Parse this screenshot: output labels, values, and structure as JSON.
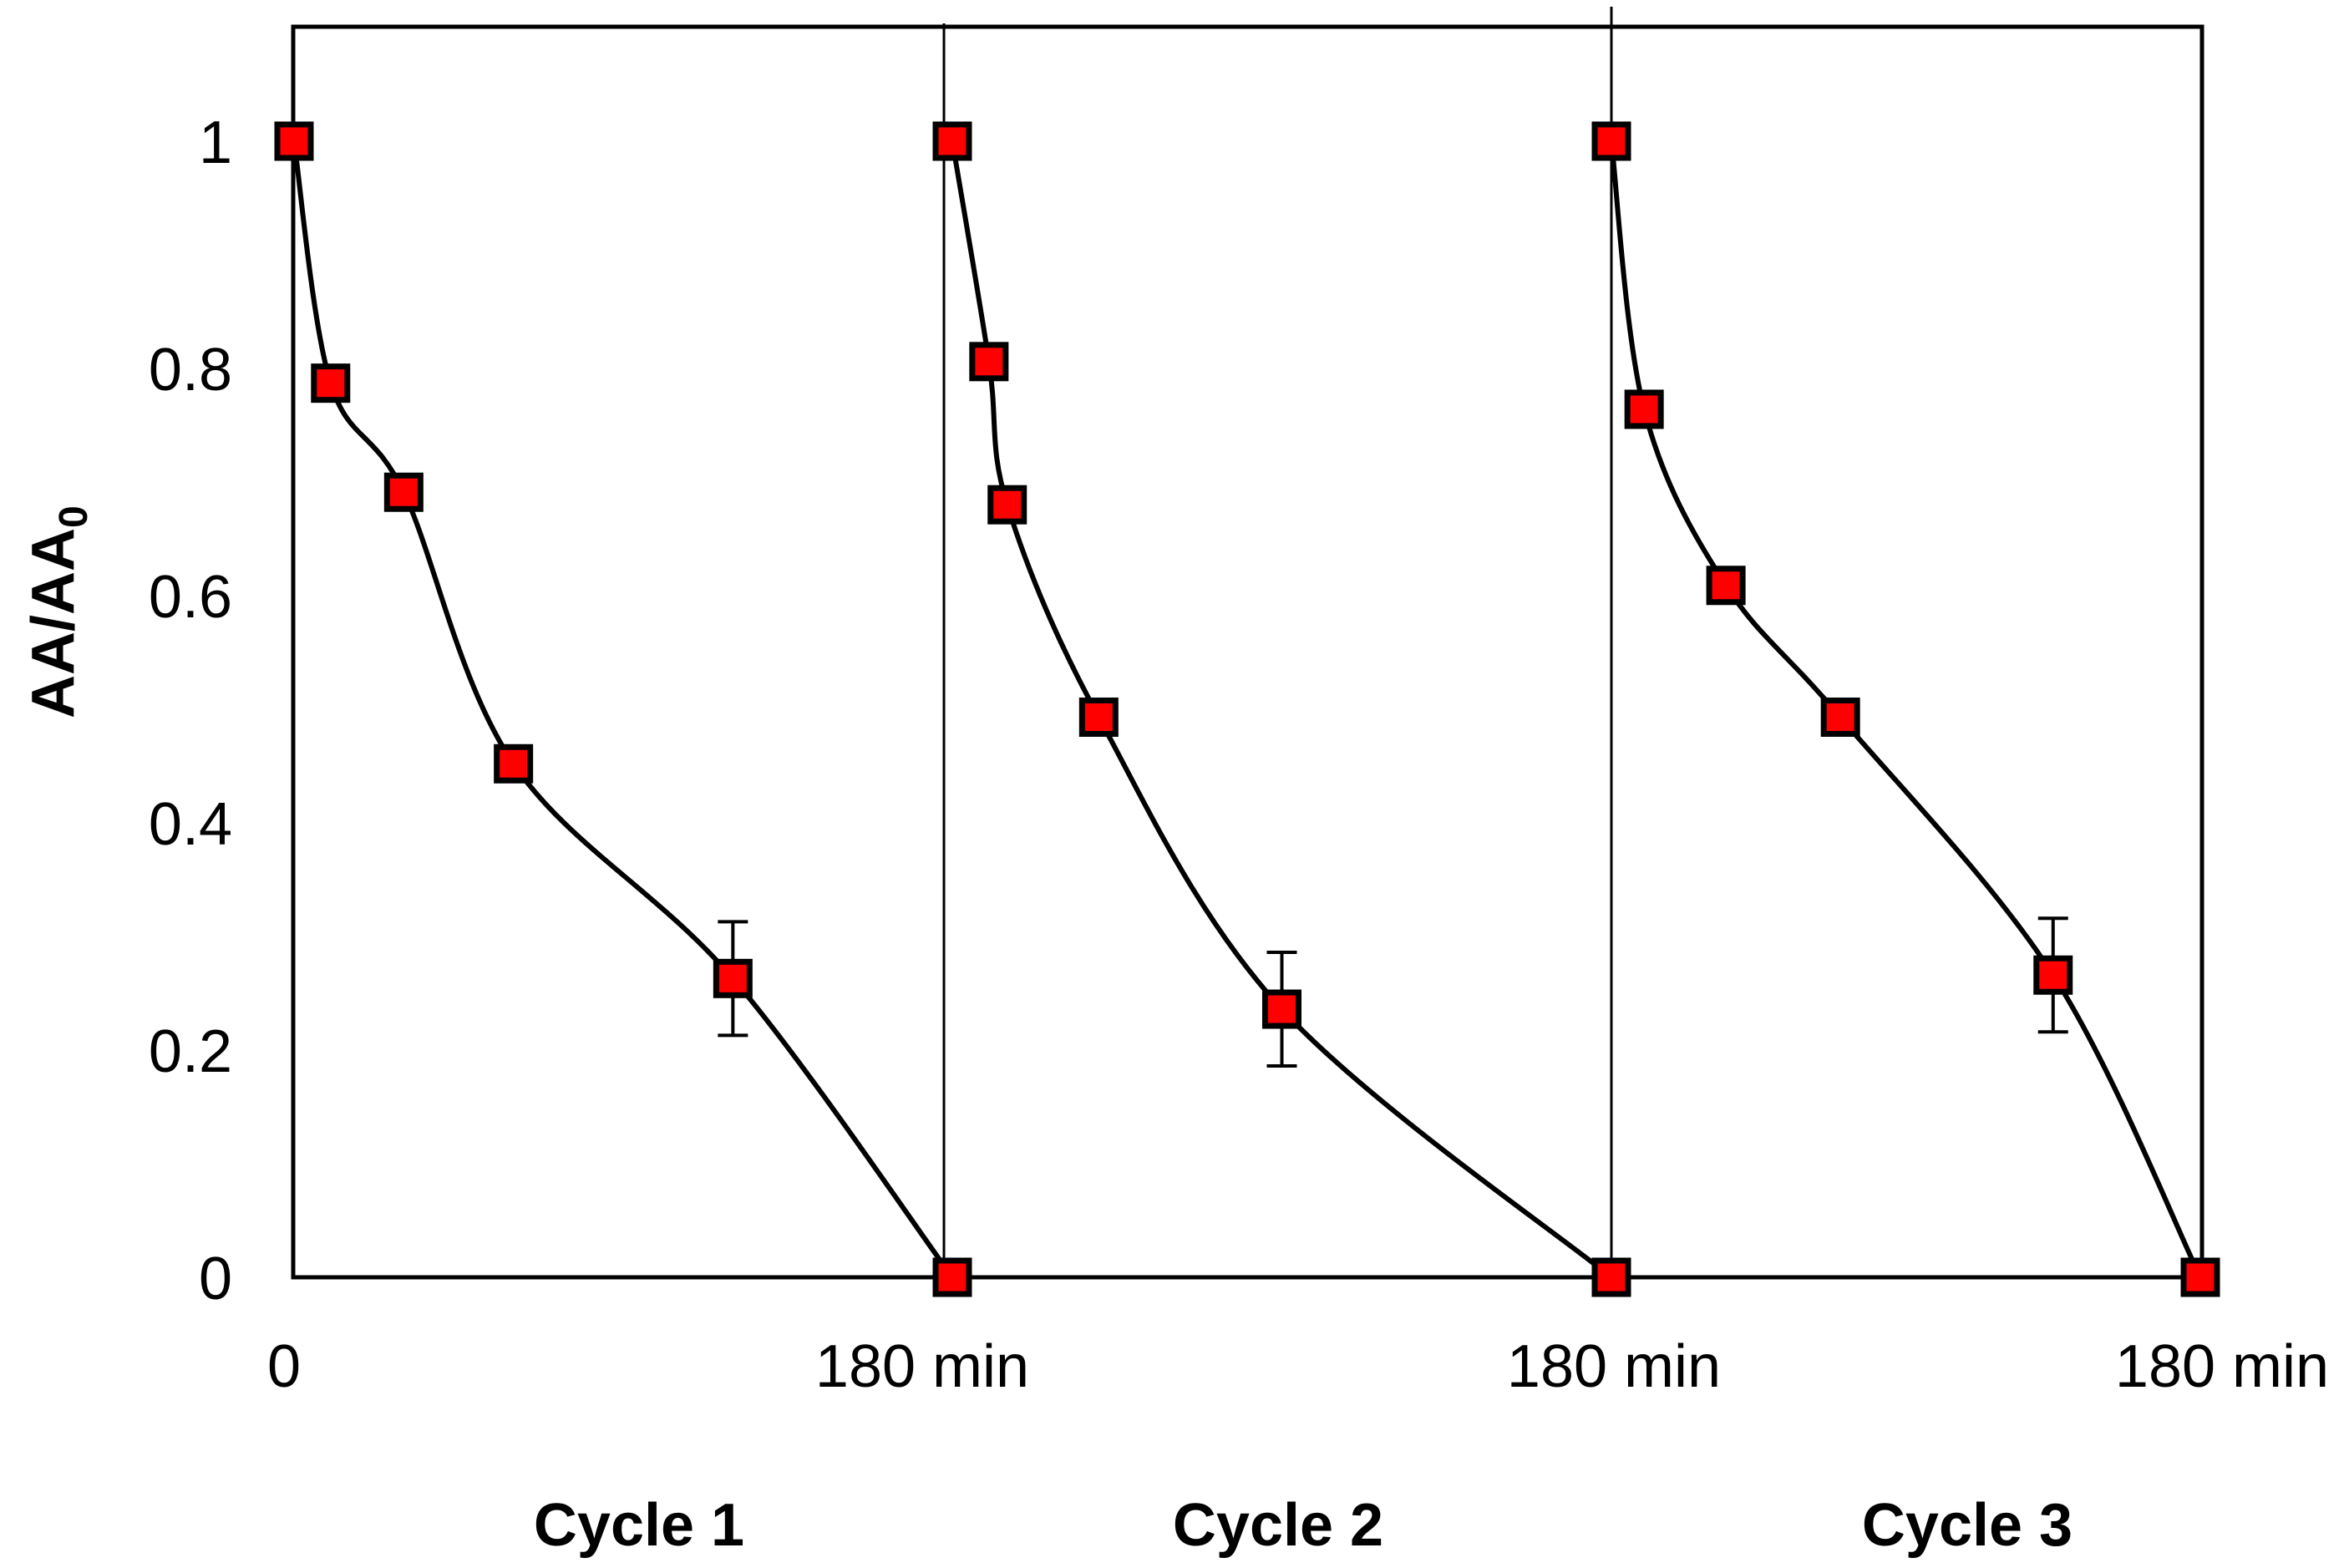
{
  "chart_data": {
    "type": "line",
    "title": "",
    "ylabel": {
      "main": "AA/AA",
      "subscript": "0"
    },
    "ylim": [
      0,
      1.1
    ],
    "yticks": [
      "0",
      "0.2",
      "0.4",
      "0.6",
      "0.8",
      "1"
    ],
    "x_tick_labels": [
      "0",
      "180 min",
      "180 min",
      "180 min"
    ],
    "series": [
      {
        "name": "Cycle 1",
        "label": "Cycle 1",
        "x_minutes": [
          0,
          10,
          30,
          60,
          120,
          180
        ],
        "values": [
          1.0,
          0.787,
          0.691,
          0.452,
          0.263,
          0.0
        ],
        "error_bars": [
          0,
          0,
          0,
          0,
          0.05,
          0
        ]
      },
      {
        "name": "Cycle 2",
        "label": "Cycle 2",
        "x_minutes": [
          0,
          10,
          15,
          40,
          90,
          180
        ],
        "values": [
          1.0,
          0.806,
          0.68,
          0.493,
          0.236,
          0.0
        ],
        "error_bars": [
          0,
          0,
          0,
          0,
          0.05,
          0
        ]
      },
      {
        "name": "Cycle 3",
        "label": "Cycle 3",
        "x_minutes": [
          0,
          10,
          35,
          70,
          135,
          180
        ],
        "values": [
          1.0,
          0.764,
          0.609,
          0.493,
          0.266,
          0.0
        ],
        "error_bars": [
          0,
          0,
          0,
          0,
          0.05,
          0
        ]
      }
    ],
    "marker_color": "#ff0000",
    "marker_edge_color": "#000000",
    "line_color": "#000000"
  }
}
